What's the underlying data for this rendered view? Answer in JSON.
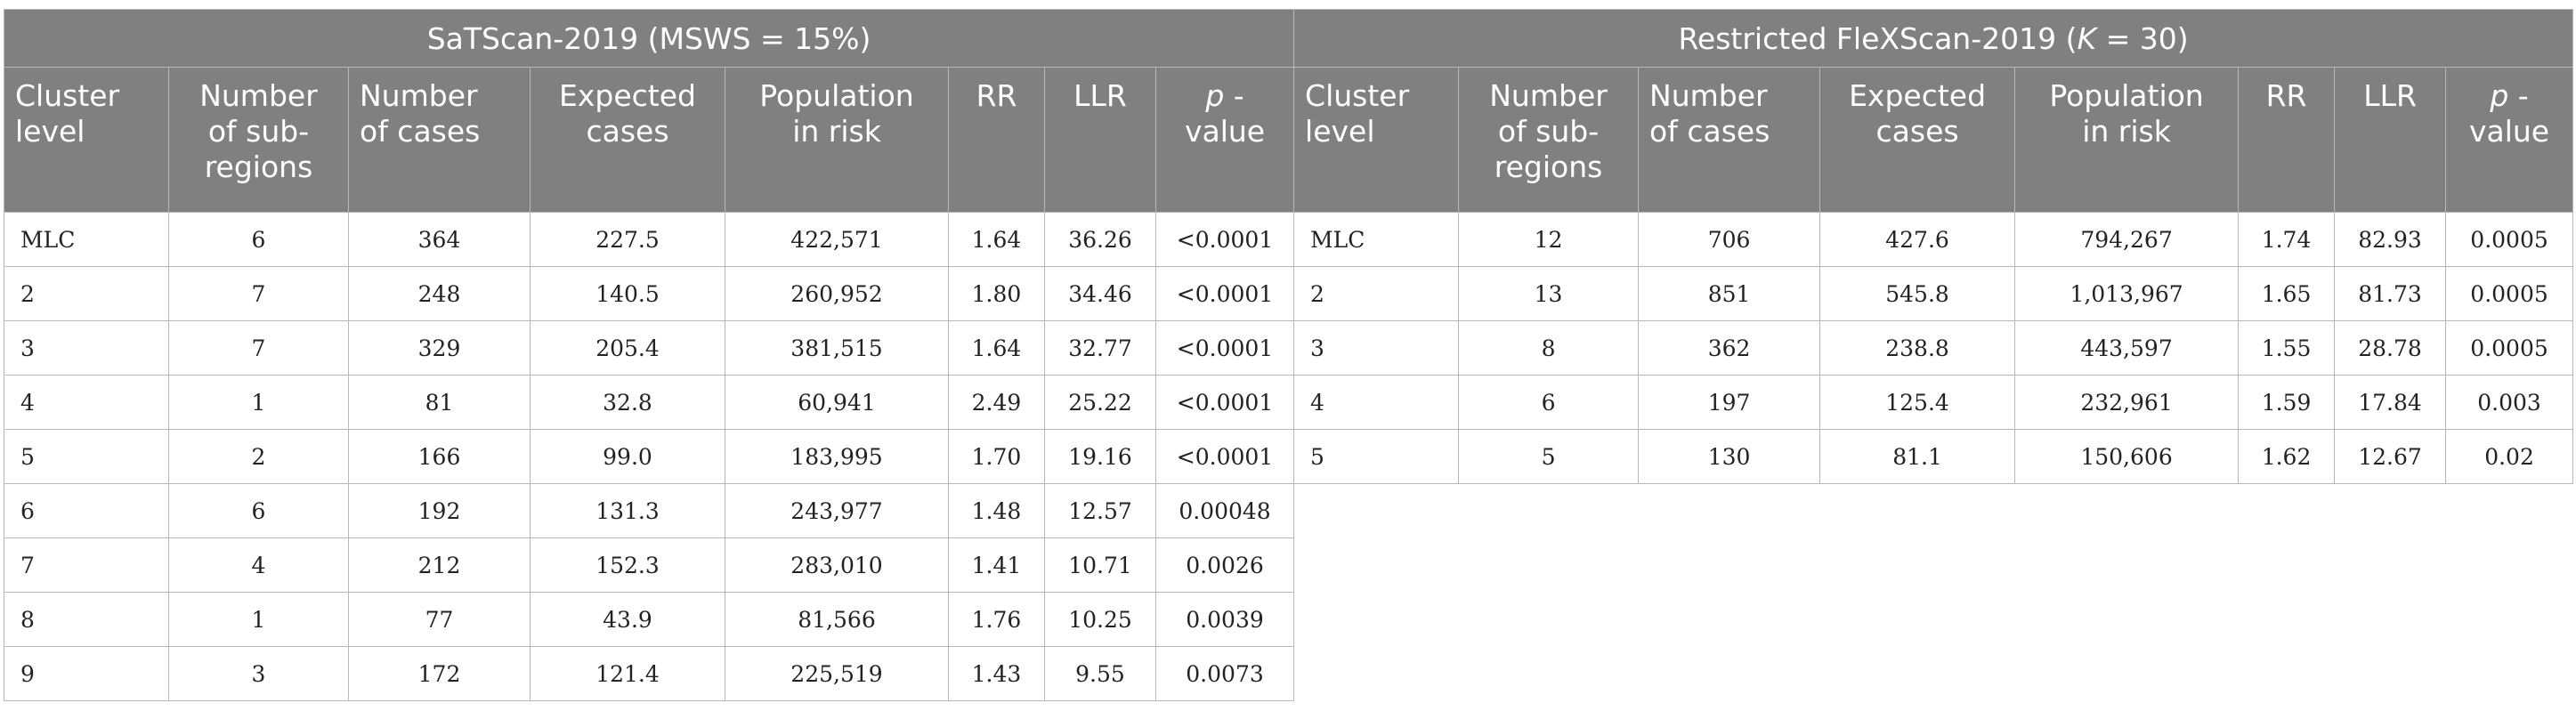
{
  "groups": {
    "satscan": {
      "title_prefix": "SaTScan-2019 (MSWS = 15%)"
    },
    "flexscan": {
      "title_prefix": "Restricted FleXScan-2019 (",
      "title_italic": "K",
      "title_suffix": " = 30)"
    }
  },
  "columns": {
    "cluster_level": "Cluster\nlevel",
    "num_subregions": "Number\nof sub-\nregions",
    "num_cases": "Number\nof cases",
    "expected_cases": "Expected\ncases",
    "population": "Population\nin risk",
    "rr": "RR",
    "llr": "LLR",
    "p_italic": "p",
    "p_rest": " -\nvalue"
  },
  "rows": [
    {
      "s": [
        "MLC",
        "6",
        "364",
        "227.5",
        "422,571",
        "1.64",
        "36.26",
        "<0.0001"
      ],
      "f": [
        "MLC",
        "12",
        "706",
        "427.6",
        "794,267",
        "1.74",
        "82.93",
        "0.0005"
      ]
    },
    {
      "s": [
        "2",
        "7",
        "248",
        "140.5",
        "260,952",
        "1.80",
        "34.46",
        "<0.0001"
      ],
      "f": [
        "2",
        "13",
        "851",
        "545.8",
        "1,013,967",
        "1.65",
        "81.73",
        "0.0005"
      ]
    },
    {
      "s": [
        "3",
        "7",
        "329",
        "205.4",
        "381,515",
        "1.64",
        "32.77",
        "<0.0001"
      ],
      "f": [
        "3",
        "8",
        "362",
        "238.8",
        "443,597",
        "1.55",
        "28.78",
        "0.0005"
      ]
    },
    {
      "s": [
        "4",
        "1",
        "81",
        "32.8",
        "60,941",
        "2.49",
        "25.22",
        "<0.0001"
      ],
      "f": [
        "4",
        "6",
        "197",
        "125.4",
        "232,961",
        "1.59",
        "17.84",
        "0.003"
      ]
    },
    {
      "s": [
        "5",
        "2",
        "166",
        "99.0",
        "183,995",
        "1.70",
        "19.16",
        "<0.0001"
      ],
      "f": [
        "5",
        "5",
        "130",
        "81.1",
        "150,606",
        "1.62",
        "12.67",
        "0.02"
      ]
    },
    {
      "s": [
        "6",
        "6",
        "192",
        "131.3",
        "243,977",
        "1.48",
        "12.57",
        "0.00048"
      ],
      "f": null
    },
    {
      "s": [
        "7",
        "4",
        "212",
        "152.3",
        "283,010",
        "1.41",
        "10.71",
        "0.0026"
      ],
      "f": null
    },
    {
      "s": [
        "8",
        "1",
        "77",
        "43.9",
        "81,566",
        "1.76",
        "10.25",
        "0.0039"
      ],
      "f": null
    },
    {
      "s": [
        "9",
        "3",
        "172",
        "121.4",
        "225,519",
        "1.43",
        "9.55",
        "0.0073"
      ],
      "f": null
    }
  ]
}
